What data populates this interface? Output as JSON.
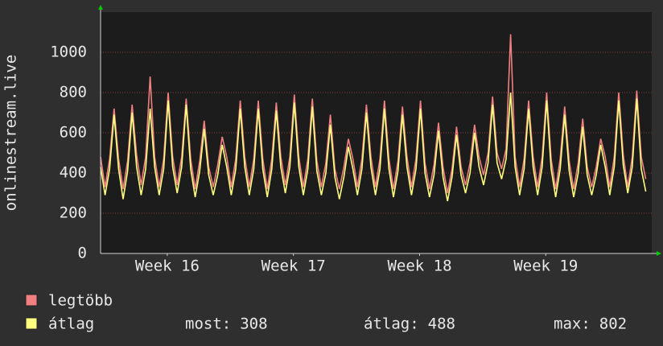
{
  "chart_data": {
    "type": "line",
    "ylabel": "onlinestream.live",
    "xlim": [
      0,
      30.58
    ],
    "xticks": [
      {
        "value": 3.7,
        "label": "Week 16"
      },
      {
        "value": 10.7,
        "label": "Week 17"
      },
      {
        "value": 17.7,
        "label": "Week 18"
      },
      {
        "value": 24.7,
        "label": "Week 19"
      }
    ],
    "ylim": [
      0,
      1200
    ],
    "yticks": [
      0,
      200,
      400,
      600,
      800,
      1000
    ],
    "grid": true,
    "x": [
      0,
      0.25,
      0.5,
      0.75,
      1,
      1.25,
      1.5,
      1.75,
      2,
      2.25,
      2.5,
      2.75,
      3,
      3.25,
      3.5,
      3.75,
      4,
      4.25,
      4.5,
      4.75,
      5,
      5.25,
      5.5,
      5.75,
      6,
      6.25,
      6.5,
      6.75,
      7,
      7.25,
      7.5,
      7.75,
      8,
      8.25,
      8.5,
      8.75,
      9,
      9.25,
      9.5,
      9.75,
      10,
      10.25,
      10.5,
      10.75,
      11,
      11.25,
      11.5,
      11.75,
      12,
      12.25,
      12.5,
      12.75,
      13,
      13.25,
      13.5,
      13.75,
      14,
      14.25,
      14.5,
      14.75,
      15,
      15.25,
      15.5,
      15.75,
      16,
      16.25,
      16.5,
      16.75,
      17,
      17.25,
      17.5,
      17.75,
      18,
      18.25,
      18.5,
      18.75,
      19,
      19.25,
      19.5,
      19.75,
      20,
      20.25,
      20.5,
      20.75,
      21,
      21.25,
      21.5,
      21.75,
      22,
      22.25,
      22.5,
      22.75,
      23,
      23.25,
      23.5,
      23.75,
      24,
      24.25,
      24.5,
      24.75,
      25,
      25.25,
      25.5,
      25.75,
      26,
      26.25,
      26.5,
      26.75,
      27,
      27.25,
      27.5,
      27.75,
      28,
      28.25,
      28.5,
      28.75,
      29,
      29.25,
      29.5,
      29.75,
      30,
      30.25
    ],
    "series": [
      {
        "name": "legtöbb",
        "color": "#f08080",
        "values": [
          480,
          330,
          470,
          720,
          470,
          320,
          460,
          740,
          490,
          340,
          480,
          880,
          480,
          330,
          470,
          800,
          480,
          340,
          480,
          770,
          470,
          320,
          460,
          660,
          430,
          330,
          440,
          580,
          480,
          330,
          470,
          760,
          480,
          330,
          470,
          760,
          470,
          320,
          470,
          750,
          480,
          340,
          480,
          790,
          480,
          330,
          470,
          770,
          460,
          330,
          450,
          690,
          420,
          320,
          430,
          570,
          470,
          330,
          470,
          740,
          480,
          330,
          470,
          760,
          470,
          320,
          460,
          730,
          480,
          330,
          470,
          760,
          450,
          320,
          440,
          650,
          430,
          300,
          420,
          630,
          430,
          340,
          450,
          640,
          480,
          390,
          500,
          780,
          500,
          420,
          520,
          1090,
          480,
          330,
          470,
          760,
          480,
          330,
          480,
          800,
          470,
          320,
          470,
          730,
          460,
          320,
          450,
          670,
          430,
          330,
          430,
          570,
          480,
          330,
          480,
          800,
          490,
          330,
          480,
          810,
          480,
          370
        ]
      },
      {
        "name": "átlag",
        "color": "#ffff80",
        "values": [
          430,
          290,
          420,
          690,
          420,
          270,
          410,
          700,
          430,
          290,
          420,
          720,
          430,
          290,
          420,
          760,
          430,
          300,
          430,
          740,
          420,
          280,
          410,
          620,
          390,
          290,
          390,
          540,
          430,
          290,
          420,
          720,
          430,
          290,
          420,
          720,
          420,
          280,
          420,
          710,
          430,
          300,
          430,
          750,
          430,
          290,
          420,
          730,
          410,
          290,
          400,
          640,
          380,
          270,
          380,
          530,
          420,
          290,
          420,
          700,
          430,
          290,
          420,
          720,
          420,
          280,
          410,
          690,
          430,
          290,
          420,
          720,
          400,
          280,
          390,
          610,
          380,
          260,
          380,
          590,
          390,
          300,
          400,
          600,
          430,
          340,
          450,
          740,
          450,
          370,
          470,
          800,
          430,
          290,
          420,
          720,
          430,
          290,
          430,
          760,
          420,
          280,
          420,
          690,
          410,
          280,
          400,
          630,
          390,
          290,
          390,
          540,
          430,
          290,
          430,
          760,
          440,
          300,
          430,
          770,
          420,
          308
        ]
      }
    ],
    "stats": [
      {
        "label": "most:",
        "value": 308
      },
      {
        "label": "átlag:",
        "value": 488
      },
      {
        "label": "max:",
        "value": 802
      }
    ]
  }
}
